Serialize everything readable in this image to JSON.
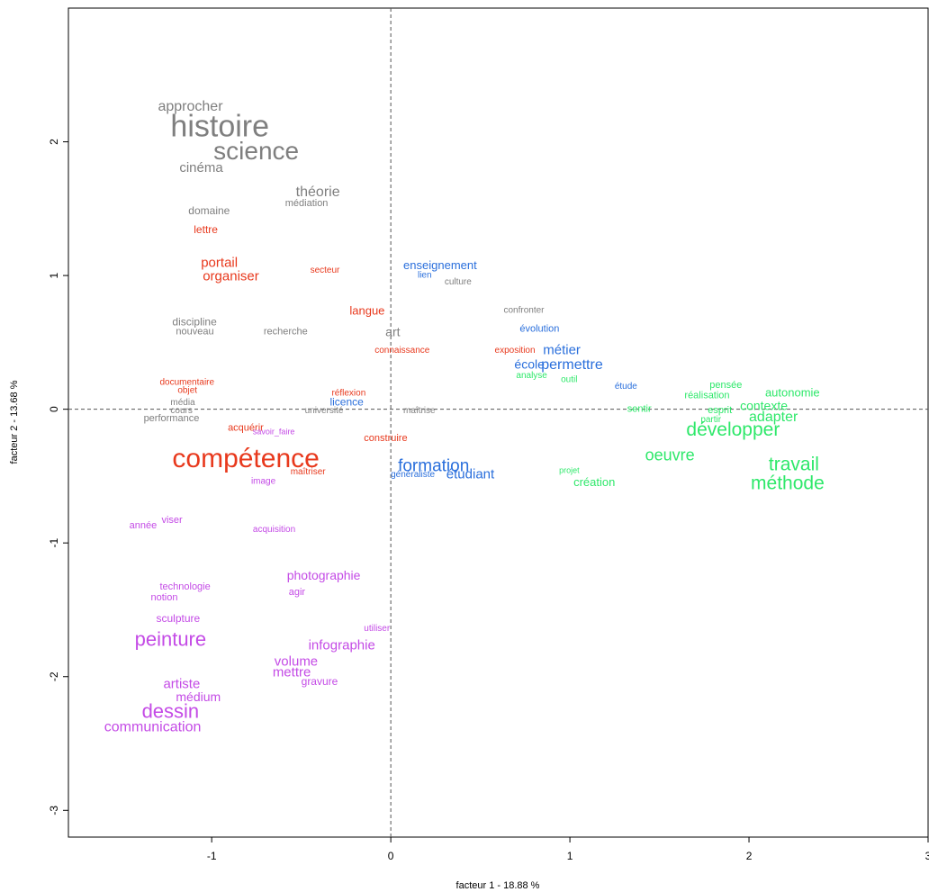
{
  "chart_data": {
    "type": "scatter",
    "title": "",
    "xlabel": "facteur 1 - 18.88 %",
    "ylabel": "facteur 2 - 13.68 %",
    "xlim": [
      -1.8,
      3.0
    ],
    "ylim": [
      -3.2,
      3.0
    ],
    "x_ticks": [
      -1,
      0,
      1,
      2,
      3
    ],
    "y_ticks": [
      -3,
      -2,
      -1,
      0,
      1,
      2
    ],
    "x_tick_labels": [
      "-1",
      "0",
      "1",
      "2",
      "3"
    ],
    "y_tick_labels": [
      "-3",
      "-2",
      "-1",
      "0",
      "1",
      "2"
    ],
    "grid": false,
    "reference_lines": [
      0,
      0
    ],
    "colors": {
      "gray": "#7f7f7f",
      "red": "#e8391d",
      "blue": "#2a6fdc",
      "green": "#2ee86a",
      "purple": "#c44be6"
    },
    "points": [
      {
        "label": "approcher",
        "x": -1.3,
        "y": 2.26,
        "size": 16,
        "color": "gray"
      },
      {
        "label": "histoire",
        "x": -1.23,
        "y": 2.1,
        "size": 34,
        "color": "gray"
      },
      {
        "label": "science",
        "x": -0.99,
        "y": 1.92,
        "size": 28,
        "color": "gray"
      },
      {
        "label": "cinéma",
        "x": -1.18,
        "y": 1.8,
        "size": 15,
        "color": "gray"
      },
      {
        "label": "théorie",
        "x": -0.53,
        "y": 1.62,
        "size": 16,
        "color": "gray"
      },
      {
        "label": "médiation",
        "x": -0.59,
        "y": 1.54,
        "size": 11,
        "color": "gray"
      },
      {
        "label": "domaine",
        "x": -1.13,
        "y": 1.48,
        "size": 12,
        "color": "gray"
      },
      {
        "label": "lettre",
        "x": -1.1,
        "y": 1.34,
        "size": 12,
        "color": "red"
      },
      {
        "label": "portail",
        "x": -1.06,
        "y": 1.09,
        "size": 15,
        "color": "red"
      },
      {
        "label": "organiser",
        "x": -1.05,
        "y": 0.99,
        "size": 15,
        "color": "red"
      },
      {
        "label": "secteur",
        "x": -0.45,
        "y": 1.04,
        "size": 10,
        "color": "red"
      },
      {
        "label": "enseignement",
        "x": 0.07,
        "y": 1.07,
        "size": 13,
        "color": "blue"
      },
      {
        "label": "lien",
        "x": 0.15,
        "y": 1.0,
        "size": 10,
        "color": "blue"
      },
      {
        "label": "culture",
        "x": 0.3,
        "y": 0.95,
        "size": 10,
        "color": "gray"
      },
      {
        "label": "langue",
        "x": -0.23,
        "y": 0.73,
        "size": 13,
        "color": "red"
      },
      {
        "label": "confronter",
        "x": 0.63,
        "y": 0.74,
        "size": 10,
        "color": "gray"
      },
      {
        "label": "discipline",
        "x": -1.22,
        "y": 0.65,
        "size": 12,
        "color": "gray"
      },
      {
        "label": "nouveau",
        "x": -1.2,
        "y": 0.58,
        "size": 11,
        "color": "gray"
      },
      {
        "label": "recherche",
        "x": -0.71,
        "y": 0.58,
        "size": 11,
        "color": "gray"
      },
      {
        "label": "art",
        "x": -0.03,
        "y": 0.57,
        "size": 14,
        "color": "gray"
      },
      {
        "label": "évolution",
        "x": 0.72,
        "y": 0.6,
        "size": 11,
        "color": "blue"
      },
      {
        "label": "connaissance",
        "x": -0.09,
        "y": 0.44,
        "size": 10,
        "color": "red"
      },
      {
        "label": "exposition",
        "x": 0.58,
        "y": 0.44,
        "size": 10,
        "color": "red"
      },
      {
        "label": "métier",
        "x": 0.85,
        "y": 0.44,
        "size": 15,
        "color": "blue"
      },
      {
        "label": "école",
        "x": 0.69,
        "y": 0.33,
        "size": 14,
        "color": "blue"
      },
      {
        "label": "permettre",
        "x": 0.84,
        "y": 0.33,
        "size": 16,
        "color": "blue"
      },
      {
        "label": "analyse",
        "x": 0.7,
        "y": 0.25,
        "size": 10,
        "color": "green"
      },
      {
        "label": "outil",
        "x": 0.95,
        "y": 0.22,
        "size": 10,
        "color": "green"
      },
      {
        "label": "étude",
        "x": 1.25,
        "y": 0.17,
        "size": 10,
        "color": "blue"
      },
      {
        "label": "pensée",
        "x": 1.78,
        "y": 0.18,
        "size": 11,
        "color": "green"
      },
      {
        "label": "réalisation",
        "x": 1.64,
        "y": 0.1,
        "size": 11,
        "color": "green"
      },
      {
        "label": "autonomie",
        "x": 2.09,
        "y": 0.12,
        "size": 13,
        "color": "green"
      },
      {
        "label": "documentaire",
        "x": -1.29,
        "y": 0.2,
        "size": 10,
        "color": "red"
      },
      {
        "label": "objet",
        "x": -1.19,
        "y": 0.14,
        "size": 10,
        "color": "red"
      },
      {
        "label": "réflexion",
        "x": -0.33,
        "y": 0.12,
        "size": 10,
        "color": "red"
      },
      {
        "label": "licence",
        "x": -0.34,
        "y": 0.05,
        "size": 12,
        "color": "blue"
      },
      {
        "label": "média",
        "x": -1.23,
        "y": 0.05,
        "size": 10,
        "color": "gray"
      },
      {
        "label": "cours",
        "x": -1.23,
        "y": -0.01,
        "size": 10,
        "color": "gray"
      },
      {
        "label": "performance",
        "x": -1.38,
        "y": -0.07,
        "size": 11,
        "color": "gray"
      },
      {
        "label": "université",
        "x": -0.48,
        "y": -0.01,
        "size": 10,
        "color": "gray"
      },
      {
        "label": "maîtrise",
        "x": 0.07,
        "y": -0.01,
        "size": 10,
        "color": "gray"
      },
      {
        "label": "sentir",
        "x": 1.32,
        "y": 0.0,
        "size": 11,
        "color": "green"
      },
      {
        "label": "contexte",
        "x": 1.95,
        "y": 0.02,
        "size": 14,
        "color": "green"
      },
      {
        "label": "esprit",
        "x": 1.77,
        "y": -0.01,
        "size": 11,
        "color": "green"
      },
      {
        "label": "partir",
        "x": 1.73,
        "y": -0.08,
        "size": 10,
        "color": "green"
      },
      {
        "label": "adapter",
        "x": 2.0,
        "y": -0.06,
        "size": 16,
        "color": "green"
      },
      {
        "label": "acquérir",
        "x": -0.91,
        "y": -0.14,
        "size": 11,
        "color": "red"
      },
      {
        "label": "savoir_faire",
        "x": -0.77,
        "y": -0.17,
        "size": 9,
        "color": "purple"
      },
      {
        "label": "développer",
        "x": 1.65,
        "y": -0.16,
        "size": 21,
        "color": "green"
      },
      {
        "label": "construire",
        "x": -0.15,
        "y": -0.22,
        "size": 11,
        "color": "red"
      },
      {
        "label": "compétence",
        "x": -1.22,
        "y": -0.38,
        "size": 30,
        "color": "red"
      },
      {
        "label": "oeuvre",
        "x": 1.42,
        "y": -0.35,
        "size": 18,
        "color": "green"
      },
      {
        "label": "formation",
        "x": 0.04,
        "y": -0.43,
        "size": 19,
        "color": "blue"
      },
      {
        "label": "travail",
        "x": 2.11,
        "y": -0.42,
        "size": 21,
        "color": "green"
      },
      {
        "label": "projet",
        "x": 0.94,
        "y": -0.46,
        "size": 9,
        "color": "green"
      },
      {
        "label": "maîtriser",
        "x": -0.56,
        "y": -0.47,
        "size": 10,
        "color": "red"
      },
      {
        "label": "généraliste",
        "x": 0.0,
        "y": -0.49,
        "size": 10,
        "color": "blue"
      },
      {
        "label": "étudiant",
        "x": 0.31,
        "y": -0.49,
        "size": 15,
        "color": "blue"
      },
      {
        "label": "méthode",
        "x": 2.01,
        "y": -0.56,
        "size": 21,
        "color": "green"
      },
      {
        "label": "création",
        "x": 1.02,
        "y": -0.55,
        "size": 13,
        "color": "green"
      },
      {
        "label": "image",
        "x": -0.78,
        "y": -0.54,
        "size": 10,
        "color": "purple"
      },
      {
        "label": "année",
        "x": -1.46,
        "y": -0.87,
        "size": 11,
        "color": "purple"
      },
      {
        "label": "viser",
        "x": -1.28,
        "y": -0.83,
        "size": 11,
        "color": "purple"
      },
      {
        "label": "acquisition",
        "x": -0.77,
        "y": -0.9,
        "size": 10,
        "color": "purple"
      },
      {
        "label": "photographie",
        "x": -0.58,
        "y": -1.25,
        "size": 14,
        "color": "purple"
      },
      {
        "label": "technologie",
        "x": -1.29,
        "y": -1.33,
        "size": 11,
        "color": "purple"
      },
      {
        "label": "agir",
        "x": -0.57,
        "y": -1.37,
        "size": 11,
        "color": "purple"
      },
      {
        "label": "notion",
        "x": -1.34,
        "y": -1.41,
        "size": 11,
        "color": "purple"
      },
      {
        "label": "sculpture",
        "x": -1.31,
        "y": -1.57,
        "size": 12,
        "color": "purple"
      },
      {
        "label": "utiliser",
        "x": -0.15,
        "y": -1.64,
        "size": 10,
        "color": "purple"
      },
      {
        "label": "peinture",
        "x": -1.43,
        "y": -1.73,
        "size": 22,
        "color": "purple"
      },
      {
        "label": "infographie",
        "x": -0.46,
        "y": -1.77,
        "size": 15,
        "color": "purple"
      },
      {
        "label": "volume",
        "x": -0.65,
        "y": -1.89,
        "size": 15,
        "color": "purple"
      },
      {
        "label": "mettre",
        "x": -0.66,
        "y": -1.97,
        "size": 15,
        "color": "purple"
      },
      {
        "label": "gravure",
        "x": -0.5,
        "y": -2.04,
        "size": 12,
        "color": "purple"
      },
      {
        "label": "artiste",
        "x": -1.27,
        "y": -2.06,
        "size": 15,
        "color": "purple"
      },
      {
        "label": "médium",
        "x": -1.2,
        "y": -2.16,
        "size": 14,
        "color": "purple"
      },
      {
        "label": "dessin",
        "x": -1.39,
        "y": -2.27,
        "size": 22,
        "color": "purple"
      },
      {
        "label": "communication",
        "x": -1.6,
        "y": -2.38,
        "size": 16,
        "color": "purple"
      }
    ]
  }
}
